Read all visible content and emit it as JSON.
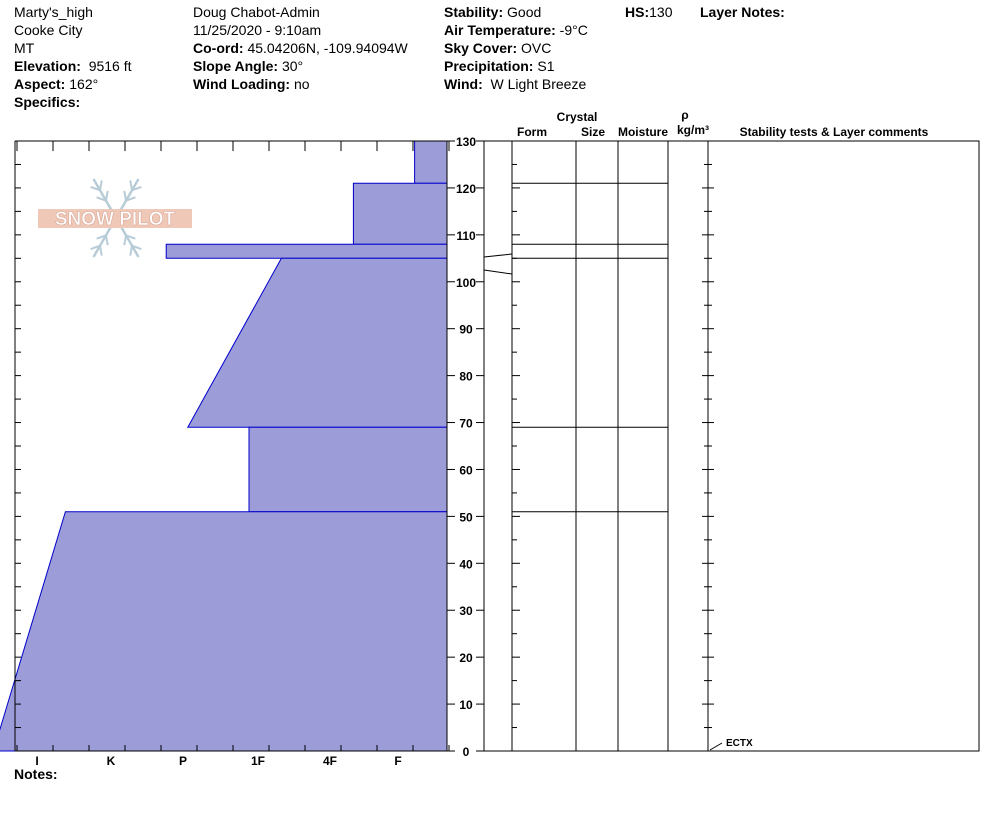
{
  "header": {
    "col1": {
      "site": "Marty's_high",
      "city": "Cooke City",
      "state": "MT",
      "elevation_label": "Elevation:",
      "elevation_value": "9516 ft",
      "aspect_label": "Aspect:",
      "aspect_value": "162°",
      "specifics_label": "Specifics:"
    },
    "col2": {
      "observer": "Doug Chabot-Admin",
      "datetime": "11/25/2020 - 9:10am",
      "coord_label": "Co-ord:",
      "coord_value": "45.04206N, -109.94094W",
      "slope_label": "Slope Angle:",
      "slope_value": "30°",
      "wind_loading_label": "Wind Loading:",
      "wind_loading_value": "no"
    },
    "col3": {
      "stability_label": "Stability:",
      "stability_value": "Good",
      "air_temp_label": "Air Temperature:",
      "air_temp_value": "-9°C",
      "sky_label": "Sky Cover:",
      "sky_value": "OVC",
      "precip_label": "Precipitation:",
      "precip_value": "S1",
      "wind_label": "Wind:",
      "wind_value": "W Light Breeze"
    },
    "hs_label": "HS:",
    "hs_value": "130",
    "layer_notes_label": "Layer Notes:"
  },
  "columns": {
    "crystal": "Crystal",
    "form": "Form",
    "size": "Size",
    "moisture": "Moisture",
    "rho": "ρ",
    "density_unit": "kg/m³",
    "stability": "Stability tests & Layer comments"
  },
  "notes_label": "Notes:",
  "logo_text": "SNOW PILOT",
  "colors": {
    "fill": "#9c9cd8",
    "edge": "#0000cc",
    "line": "#000000"
  },
  "chart_data": {
    "type": "snow-profile-hardness",
    "x_axis_ticks": [
      "I",
      "K",
      "P",
      "1F",
      "4F",
      "F"
    ],
    "hardness_scale_note": "hardness index: 0 at right edge (F side), increasing toward left",
    "y_ticks": [
      0,
      10,
      20,
      30,
      40,
      50,
      60,
      70,
      80,
      90,
      100,
      110,
      120,
      130
    ],
    "ylim": [
      0,
      130
    ],
    "hs": 130,
    "layers": [
      {
        "bottom": 121,
        "top": 130,
        "hardness_bottom": 0.45,
        "hardness_top": 0.45
      },
      {
        "bottom": 108,
        "top": 121,
        "hardness_bottom": 1.3,
        "hardness_top": 1.3
      },
      {
        "bottom": 105,
        "top": 108,
        "hardness_bottom": 3.9,
        "hardness_top": 3.9
      },
      {
        "bottom": 69,
        "top": 105,
        "hardness_bottom": 3.6,
        "hardness_top": 2.3
      },
      {
        "bottom": 51,
        "top": 69,
        "hardness_bottom": 2.75,
        "hardness_top": 2.75
      },
      {
        "bottom": 0,
        "top": 51,
        "hardness_bottom": 6.3,
        "hardness_top": 5.3
      }
    ],
    "layer_boundaries": [
      130,
      121,
      108,
      105,
      69,
      51
    ],
    "stability_tests": [
      {
        "label": "ECTX",
        "depth": 0
      }
    ]
  }
}
